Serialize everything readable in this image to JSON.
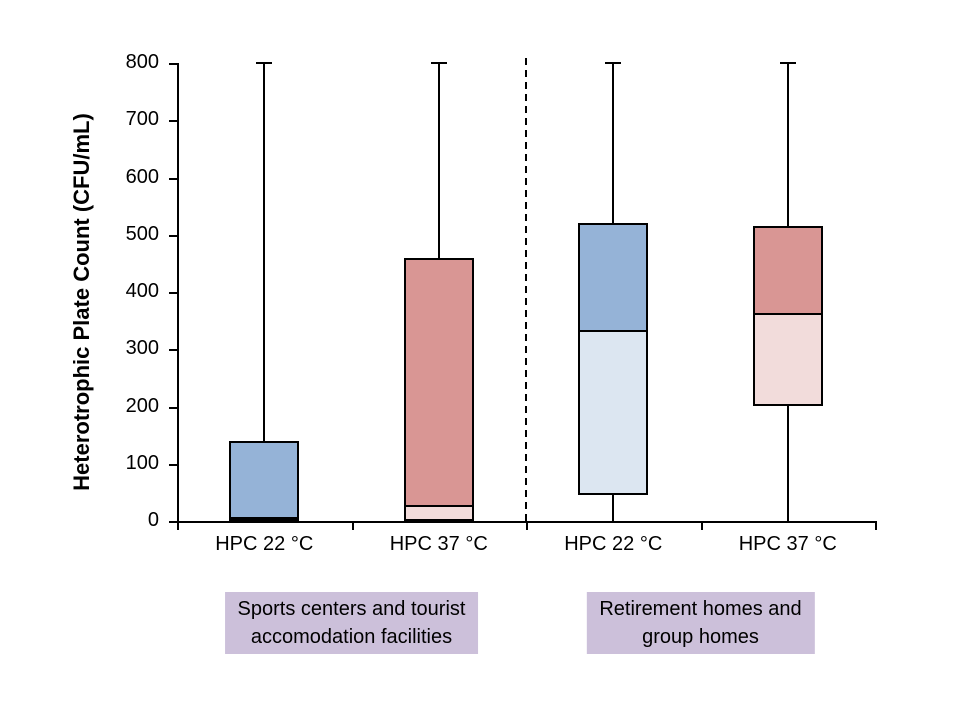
{
  "chart_data": {
    "type": "box",
    "title": "",
    "ylabel": "Heterotrophic Plate Count (CFU/mL)",
    "ylim": [
      0,
      800
    ],
    "ytick_step": 100,
    "yticks": [
      "0",
      "100",
      "200",
      "300",
      "400",
      "500",
      "600",
      "700",
      "800"
    ],
    "grid": false,
    "legend": "none",
    "separator": {
      "style": "dashed",
      "position": "between-groups"
    },
    "groups": [
      {
        "label_line1": "Sports centers and tourist",
        "label_line2": "accomodation facilities",
        "boxes": [
          {
            "category": "HPC 22 °C",
            "whisker_low": 0,
            "q1": 0,
            "median": 0,
            "q3": 140,
            "whisker_high": 800,
            "palette": "blue"
          },
          {
            "category": "HPC 37 °C",
            "whisker_low": 0,
            "q1": 0,
            "median": 25,
            "q3": 460,
            "whisker_high": 800,
            "palette": "red"
          }
        ]
      },
      {
        "label_line1": "Retirement homes and",
        "label_line2": "group homes",
        "boxes": [
          {
            "category": "HPC 22 °C",
            "whisker_low": 0,
            "q1": 45,
            "median": 330,
            "q3": 520,
            "whisker_high": 800,
            "palette": "blue"
          },
          {
            "category": "HPC 37 °C",
            "whisker_low": 0,
            "q1": 200,
            "median": 360,
            "q3": 515,
            "whisker_high": 800,
            "palette": "red"
          }
        ]
      }
    ],
    "colors": {
      "blue_upper": "#95B3D7",
      "blue_lower": "#DCE6F1",
      "red_upper": "#D99694",
      "red_lower": "#F2DCDB",
      "group_label_bg": "#CCC0DA",
      "axis": "#000000",
      "background": "#FFFFFF"
    }
  }
}
